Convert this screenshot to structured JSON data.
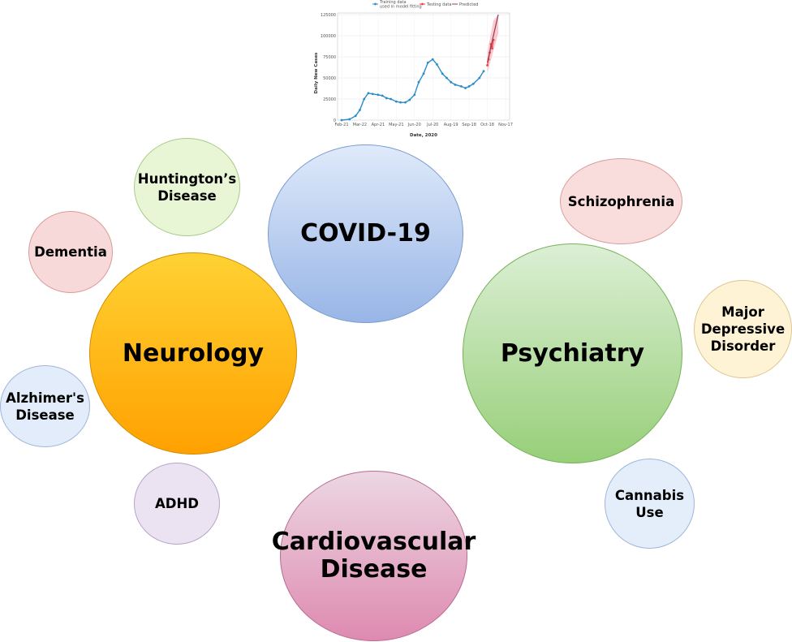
{
  "bubbles": {
    "covid": "COVID-19",
    "neurology": "Neurology",
    "psychiatry": "Psychiatry",
    "cardio": "Cardiovascular\nDisease",
    "huntington": "Huntington’s\nDisease",
    "dementia": "Dementia",
    "alzheimer": "Alzhimer's\nDisease",
    "adhd": "ADHD",
    "schizophrenia": "Schizophrenia",
    "mdd": "Major\nDepressive\nDisorder",
    "cannabis": "Cannabis\nUse"
  },
  "chart_data": {
    "type": "line",
    "xlabel": "Date, 2020",
    "ylabel": "Daily New Cases",
    "ylim": [
      0,
      125000
    ],
    "yticks": [
      "0",
      "25000",
      "50000",
      "75000",
      "100000",
      "125000"
    ],
    "xticks": [
      "Feb-21",
      "Mar-22",
      "Apr-21",
      "May-21",
      "Jun-20",
      "Jul-20",
      "Aug-19",
      "Sep-18",
      "Oct-18",
      "Nov-17"
    ],
    "legend": {
      "training_line1": "Training data",
      "training_line2": "used in model fitting",
      "testing": "Testing data",
      "predicted": "Predicted"
    },
    "colors": {
      "training": "#2b8cc8",
      "testing": "#e8434a",
      "predicted": "#9e3a4f",
      "band": "#f5b4bd"
    },
    "series": [
      {
        "name": "Training data used in model fitting",
        "x": [
          "2020-02-21",
          "2020-03-05",
          "2020-03-15",
          "2020-03-22",
          "2020-03-29",
          "2020-04-05",
          "2020-04-12",
          "2020-04-21",
          "2020-04-28",
          "2020-05-05",
          "2020-05-12",
          "2020-05-21",
          "2020-05-28",
          "2020-06-05",
          "2020-06-12",
          "2020-06-20",
          "2020-06-27",
          "2020-07-05",
          "2020-07-12",
          "2020-07-20",
          "2020-07-27",
          "2020-08-05",
          "2020-08-12",
          "2020-08-19",
          "2020-08-26",
          "2020-09-05",
          "2020-09-12",
          "2020-09-18",
          "2020-09-25",
          "2020-10-05",
          "2020-10-12"
        ],
        "values": [
          0,
          1000,
          5000,
          12000,
          25000,
          32000,
          31000,
          30000,
          29000,
          26000,
          25000,
          22000,
          21000,
          21000,
          24000,
          30000,
          45000,
          55000,
          68000,
          72000,
          66000,
          55000,
          50000,
          45000,
          42000,
          40000,
          38000,
          40000,
          43000,
          50000,
          58000
        ]
      },
      {
        "name": "Testing data",
        "x": [
          "2020-10-18",
          "2020-10-20",
          "2020-10-22",
          "2020-10-24",
          "2020-10-26",
          "2020-10-28"
        ],
        "values": [
          65000,
          72000,
          80000,
          90000,
          85000,
          95000
        ]
      },
      {
        "name": "Predicted",
        "x": [
          "2020-10-18",
          "2020-10-28",
          "2020-11-05"
        ],
        "values": [
          68000,
          100000,
          125000
        ]
      }
    ]
  }
}
